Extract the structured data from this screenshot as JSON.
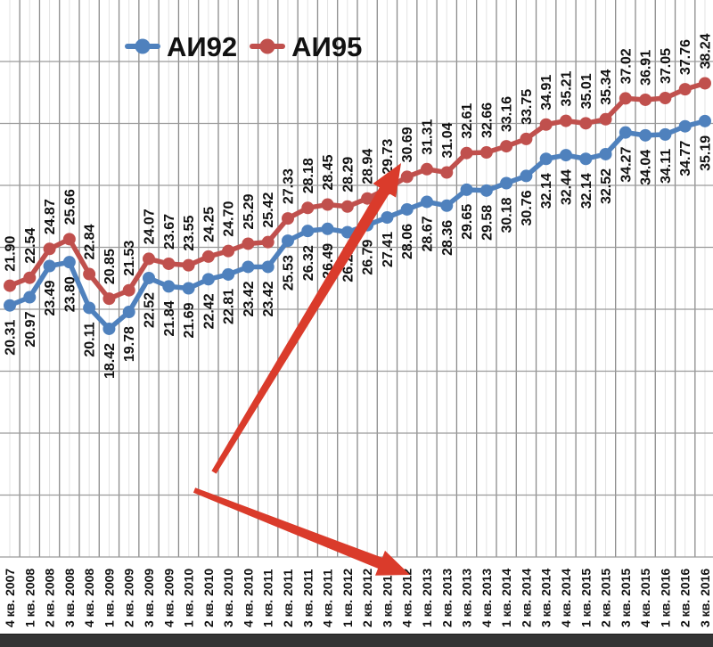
{
  "chart_data": {
    "type": "line",
    "title": "",
    "categories": [
      "4 кв. 2007",
      "1 кв. 2008",
      "2 кв. 2008",
      "3 кв. 2008",
      "4 кв. 2008",
      "1 кв. 2009",
      "2 кв. 2009",
      "3 кв. 2009",
      "4 кв. 2009",
      "1 кв. 2010",
      "2 кв. 2010",
      "3 кв. 2010",
      "4 кв. 2010",
      "1 кв. 2011",
      "2 кв. 2011",
      "3 кв. 2011",
      "4 кв. 2011",
      "1 кв. 2012",
      "2 кв. 2012",
      "3 кв. 2012",
      "4 кв. 2012",
      "1 кв. 2013",
      "2 кв. 2013",
      "3 кв. 2013",
      "4 кв. 2013",
      "1 кв. 2014",
      "2 кв. 2014",
      "3 кв. 2014",
      "4 кв. 2014",
      "1 кв. 2015",
      "2 кв. 2015",
      "3 кв. 2015",
      "4 кв. 2015",
      "1 кв. 2016",
      "2 кв. 2016",
      "3 кв. 2016"
    ],
    "series": [
      {
        "name": "АИ92",
        "color": "#4F81BD",
        "label_position": "below",
        "values": [
          20.31,
          20.97,
          23.49,
          23.8,
          20.11,
          18.42,
          19.78,
          22.52,
          21.84,
          21.69,
          22.42,
          22.81,
          23.42,
          23.42,
          25.53,
          26.32,
          26.49,
          26.22,
          26.79,
          27.41,
          28.06,
          28.67,
          28.36,
          29.65,
          29.58,
          30.18,
          30.76,
          32.14,
          32.44,
          32.14,
          32.52,
          34.27,
          34.04,
          34.11,
          34.77,
          35.19
        ]
      },
      {
        "name": "АИ95",
        "color": "#C0504D",
        "label_position": "above",
        "values": [
          21.9,
          22.54,
          24.87,
          25.66,
          22.84,
          20.85,
          21.53,
          24.07,
          23.67,
          23.55,
          24.25,
          24.7,
          25.29,
          25.42,
          27.33,
          28.18,
          28.45,
          28.29,
          28.94,
          29.73,
          30.69,
          31.31,
          31.04,
          32.61,
          32.66,
          33.16,
          33.75,
          34.91,
          35.21,
          35.01,
          35.34,
          37.02,
          36.91,
          37.05,
          37.76,
          38.24
        ]
      }
    ],
    "xlabel": "",
    "ylabel": "",
    "ylim": [
      0,
      45
    ],
    "ygrid_step": 5,
    "grid": "on",
    "legend_position": "top",
    "annotations": [
      {
        "name": "up-trend-arrow",
        "color": "#DA3B2B",
        "from": [
          240,
          530
        ],
        "to": [
          450,
          183
        ]
      },
      {
        "name": "down-trend-arrow",
        "color": "#DA3B2B",
        "from": [
          218,
          550
        ],
        "to": [
          460,
          645
        ]
      }
    ]
  },
  "colors": {
    "grid_major": "#8C8C8C",
    "grid_minor": "#E3E3E3",
    "grid_horizontal": "#9A9A9A",
    "label_text": "#111111",
    "bottom_bar": "#343434"
  }
}
